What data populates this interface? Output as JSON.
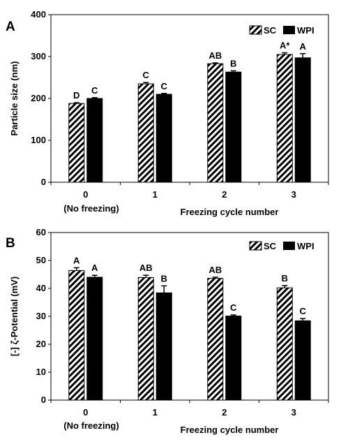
{
  "chart_data": [
    {
      "type": "bar",
      "panel_label": "A",
      "ylabel": "Particle size (nm)",
      "xlabel": "Freezing cycle number",
      "ylim": [
        0,
        400
      ],
      "yticks": [
        0,
        100,
        200,
        300,
        400
      ],
      "categories": [
        "0",
        "1",
        "2",
        "3"
      ],
      "category_sublabel": "(No freezing)",
      "legend_position": "top-right",
      "series": [
        {
          "name": "SC",
          "fill": "hatched",
          "values": [
            188,
            235,
            283,
            305
          ],
          "errors": [
            2,
            3,
            2,
            4
          ],
          "annotations": [
            "D",
            "C",
            "AB",
            "A*"
          ]
        },
        {
          "name": "WPI",
          "fill": "solid",
          "values": [
            200,
            210,
            263,
            297
          ],
          "errors": [
            2,
            2,
            3,
            10
          ],
          "annotations": [
            "C",
            "C",
            "B",
            "A"
          ]
        }
      ]
    },
    {
      "type": "bar",
      "panel_label": "B",
      "ylabel": "[-] ζ-Potential (mV)",
      "xlabel": "Freezing cycle number",
      "ylim": [
        0,
        60
      ],
      "yticks": [
        0,
        10,
        20,
        30,
        40,
        50,
        60
      ],
      "categories": [
        "0",
        "1",
        "2",
        "3"
      ],
      "category_sublabel": "(No freezing)",
      "legend_position": "top-right",
      "series": [
        {
          "name": "SC",
          "fill": "hatched",
          "values": [
            46.4,
            43.9,
            43.6,
            40.2
          ],
          "errors": [
            1.0,
            0.8,
            0.4,
            0.8
          ],
          "annotations": [
            "A",
            "AB",
            "AB",
            "B"
          ]
        },
        {
          "name": "WPI",
          "fill": "solid",
          "values": [
            44.0,
            38.4,
            30.1,
            28.4
          ],
          "errors": [
            0.7,
            2.5,
            0.4,
            0.8
          ],
          "annotations": [
            "A",
            "B",
            "C",
            "C"
          ]
        }
      ]
    }
  ]
}
